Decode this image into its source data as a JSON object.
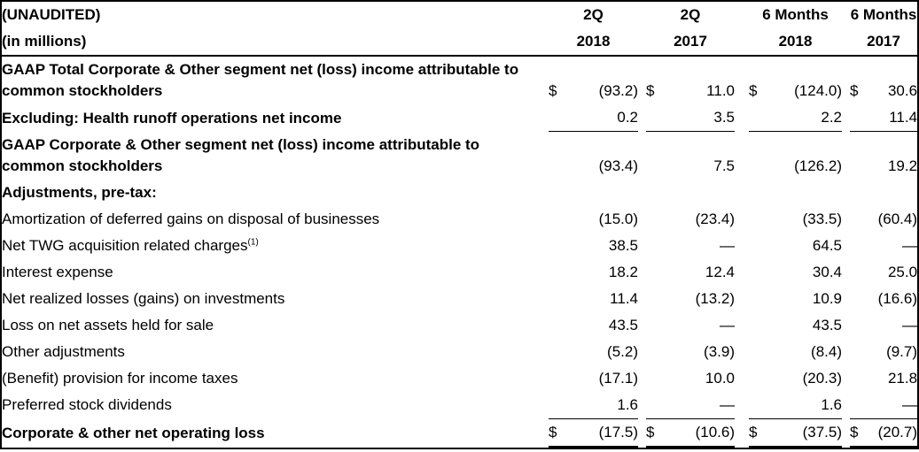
{
  "currency_symbol": "$",
  "header": {
    "unaudited_label": "(UNAUDITED)",
    "units_label": "(in millions)",
    "columns": [
      {
        "period": "2Q",
        "year": "2018"
      },
      {
        "period": "2Q",
        "year": "2017"
      },
      {
        "period": "6 Months",
        "year": "2018"
      },
      {
        "period": "6 Months",
        "year": "2017"
      }
    ]
  },
  "rows": [
    {
      "label": "GAAP Total Corporate & Other segment net (loss) income attributable to common stockholders",
      "bold": true,
      "indent": 0,
      "dollar": true,
      "values": [
        "(93.2)",
        "11.0",
        "(124.0)",
        "30.6"
      ]
    },
    {
      "label": "Excluding: Health runoff operations net income",
      "bold": true,
      "indent": 0,
      "values": [
        "0.2",
        "3.5",
        "2.2",
        "11.4"
      ],
      "underline": true
    },
    {
      "label": "GAAP Corporate & Other segment net (loss) income attributable to common stockholders",
      "bold": true,
      "indent": 0,
      "values": [
        "(93.4)",
        "7.5",
        "(126.2)",
        "19.2"
      ]
    },
    {
      "label": "Adjustments, pre-tax:",
      "bold": true,
      "indent": 1,
      "values": [
        "",
        "",
        "",
        ""
      ]
    },
    {
      "label": "Amortization of deferred gains on disposal of businesses",
      "indent": 2,
      "values": [
        "(15.0)",
        "(23.4)",
        "(33.5)",
        "(60.4)"
      ]
    },
    {
      "label": "Net TWG acquisition related charges",
      "footnote": "(1)",
      "indent": 2,
      "values": [
        "38.5",
        "—",
        "64.5",
        "—"
      ]
    },
    {
      "label": "Interest expense",
      "indent": 2,
      "values": [
        "18.2",
        "12.4",
        "30.4",
        "25.0"
      ]
    },
    {
      "label": "Net realized losses (gains) on investments",
      "indent": 2,
      "values": [
        "11.4",
        "(13.2)",
        "10.9",
        "(16.6)"
      ]
    },
    {
      "label": "Loss on net assets held for sale",
      "indent": 2,
      "values": [
        "43.5",
        "—",
        "43.5",
        "—"
      ]
    },
    {
      "label": "Other adjustments",
      "indent": 2,
      "values": [
        "(5.2)",
        "(3.9)",
        "(8.4)",
        "(9.7)"
      ]
    },
    {
      "label": "(Benefit) provision for income taxes",
      "indent": 2,
      "values": [
        "(17.1)",
        "10.0",
        "(20.3)",
        "21.8"
      ]
    },
    {
      "label": "Preferred stock dividends",
      "indent": 2,
      "values": [
        "1.6",
        "—",
        "1.6",
        "—"
      ],
      "underline": true
    },
    {
      "label": "Corporate & other net operating loss",
      "bold": true,
      "indent": 0,
      "dollar": true,
      "values": [
        "(17.5)",
        "(10.6)",
        "(37.5)",
        "(20.7)"
      ],
      "total": true
    }
  ]
}
